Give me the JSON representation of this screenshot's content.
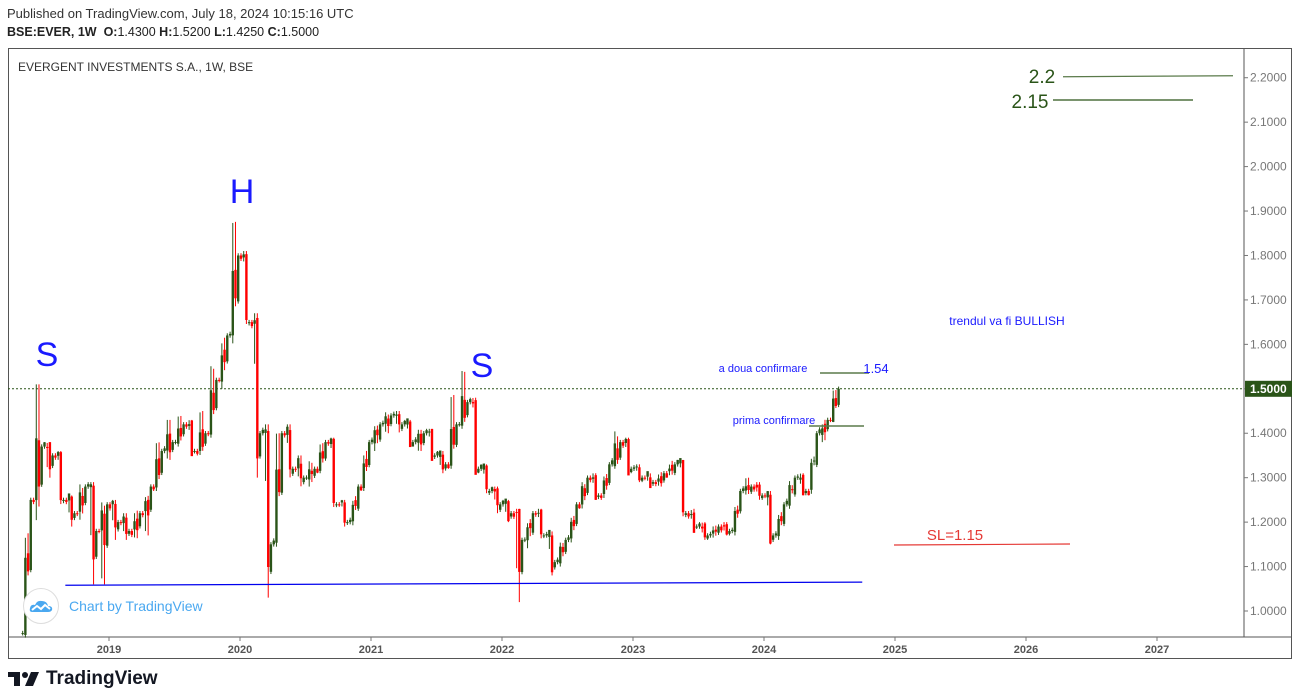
{
  "header": {
    "published": "Published on TradingView.com, July 18, 2024 10:15:16 UTC",
    "symbol": "BSE:EVER, 1W",
    "o_label": "O:",
    "o": "1.4300",
    "h_label": "H:",
    "h": "1.5200",
    "l_label": "L:",
    "l": "1.4250",
    "c_label": "C:",
    "c": "1.5000"
  },
  "chart_title": "EVERGENT INVESTMENTS S.A., 1W, BSE",
  "watermark": "Chart by TradingView",
  "footer_brand": "TradingView",
  "colors": {
    "up": "#2a5418",
    "down": "#ff0000",
    "annotation": "#1a1aff",
    "target": "#2a5418",
    "stop": "#e53935",
    "last_price_bg": "#2a5418"
  },
  "chart_data": {
    "type": "candlestick",
    "interval": "1W",
    "ylim": [
      0.94,
      2.26
    ],
    "xlim": [
      "2018-04",
      "2027-08"
    ],
    "y_ticks": [
      "1.0000",
      "1.1000",
      "1.2000",
      "1.3000",
      "1.4000",
      "1.5000",
      "1.6000",
      "1.7000",
      "1.8000",
      "1.9000",
      "2.0000",
      "2.1000",
      "2.2000"
    ],
    "x_ticks": [
      "2019",
      "2020",
      "2021",
      "2022",
      "2023",
      "2024",
      "2025",
      "2026",
      "2027"
    ],
    "last_price": 1.5,
    "last_price_label": "1.5000",
    "ohlc_monthly_approx": [
      [
        "2018-05",
        0.95,
        1.3,
        0.94,
        1.25
      ],
      [
        "2018-06",
        1.25,
        1.51,
        1.2,
        1.37
      ],
      [
        "2018-07",
        1.37,
        1.38,
        1.3,
        1.35
      ],
      [
        "2018-08",
        1.35,
        1.36,
        1.24,
        1.25
      ],
      [
        "2018-09",
        1.25,
        1.26,
        1.19,
        1.22
      ],
      [
        "2018-10",
        1.22,
        1.3,
        1.2,
        1.28
      ],
      [
        "2018-11",
        1.28,
        1.29,
        1.06,
        1.18
      ],
      [
        "2018-12",
        1.18,
        1.26,
        1.06,
        1.24
      ],
      [
        "2019-01",
        1.24,
        1.25,
        1.16,
        1.2
      ],
      [
        "2019-02",
        1.2,
        1.22,
        1.16,
        1.18
      ],
      [
        "2019-03",
        1.18,
        1.24,
        1.16,
        1.22
      ],
      [
        "2019-04",
        1.22,
        1.29,
        1.17,
        1.28
      ],
      [
        "2019-05",
        1.28,
        1.4,
        1.27,
        1.36
      ],
      [
        "2019-06",
        1.36,
        1.43,
        1.34,
        1.38
      ],
      [
        "2019-07",
        1.38,
        1.45,
        1.37,
        1.42
      ],
      [
        "2019-08",
        1.42,
        1.43,
        1.35,
        1.36
      ],
      [
        "2019-09",
        1.36,
        1.45,
        1.35,
        1.4
      ],
      [
        "2019-10",
        1.4,
        1.58,
        1.39,
        1.52
      ],
      [
        "2019-11",
        1.52,
        1.65,
        1.5,
        1.62
      ],
      [
        "2019-12",
        1.62,
        1.92,
        1.6,
        1.8
      ],
      [
        "2020-01",
        1.8,
        1.81,
        1.64,
        1.65
      ],
      [
        "2020-02",
        1.65,
        1.67,
        1.3,
        1.4
      ],
      [
        "2020-03",
        1.4,
        1.42,
        1.03,
        1.15
      ],
      [
        "2020-04",
        1.15,
        1.49,
        1.14,
        1.4
      ],
      [
        "2020-05",
        1.4,
        1.42,
        1.3,
        1.32
      ],
      [
        "2020-06",
        1.32,
        1.35,
        1.28,
        1.3
      ],
      [
        "2020-07",
        1.3,
        1.34,
        1.28,
        1.32
      ],
      [
        "2020-08",
        1.32,
        1.4,
        1.31,
        1.38
      ],
      [
        "2020-09",
        1.38,
        1.39,
        1.23,
        1.24
      ],
      [
        "2020-10",
        1.24,
        1.25,
        1.19,
        1.2
      ],
      [
        "2020-11",
        1.2,
        1.29,
        1.19,
        1.28
      ],
      [
        "2020-12",
        1.28,
        1.4,
        1.27,
        1.38
      ],
      [
        "2021-01",
        1.38,
        1.43,
        1.36,
        1.42
      ],
      [
        "2021-02",
        1.42,
        1.45,
        1.4,
        1.44
      ],
      [
        "2021-03",
        1.44,
        1.45,
        1.4,
        1.42
      ],
      [
        "2021-04",
        1.42,
        1.43,
        1.37,
        1.38
      ],
      [
        "2021-05",
        1.38,
        1.41,
        1.36,
        1.4
      ],
      [
        "2021-06",
        1.4,
        1.41,
        1.34,
        1.35
      ],
      [
        "2021-07",
        1.35,
        1.36,
        1.31,
        1.33
      ],
      [
        "2021-08",
        1.33,
        1.5,
        1.32,
        1.42
      ],
      [
        "2021-09",
        1.42,
        1.54,
        1.41,
        1.47
      ],
      [
        "2021-10",
        1.47,
        1.48,
        1.31,
        1.32
      ],
      [
        "2021-11",
        1.32,
        1.33,
        1.26,
        1.27
      ],
      [
        "2021-12",
        1.27,
        1.28,
        1.22,
        1.24
      ],
      [
        "2022-01",
        1.24,
        1.25,
        1.2,
        1.22
      ],
      [
        "2022-02",
        1.22,
        1.23,
        1.02,
        1.16
      ],
      [
        "2022-03",
        1.16,
        1.23,
        1.14,
        1.22
      ],
      [
        "2022-04",
        1.22,
        1.23,
        1.16,
        1.17
      ],
      [
        "2022-05",
        1.17,
        1.18,
        1.08,
        1.11
      ],
      [
        "2022-06",
        1.11,
        1.17,
        1.1,
        1.16
      ],
      [
        "2022-07",
        1.16,
        1.25,
        1.15,
        1.24
      ],
      [
        "2022-08",
        1.24,
        1.31,
        1.23,
        1.3
      ],
      [
        "2022-09",
        1.3,
        1.31,
        1.25,
        1.26
      ],
      [
        "2022-10",
        1.26,
        1.34,
        1.25,
        1.33
      ],
      [
        "2022-11",
        1.33,
        1.41,
        1.32,
        1.38
      ],
      [
        "2022-12",
        1.38,
        1.39,
        1.31,
        1.32
      ],
      [
        "2023-01",
        1.32,
        1.33,
        1.29,
        1.3
      ],
      [
        "2023-02",
        1.3,
        1.31,
        1.28,
        1.29
      ],
      [
        "2023-03",
        1.29,
        1.32,
        1.28,
        1.31
      ],
      [
        "2023-04",
        1.31,
        1.34,
        1.3,
        1.33
      ],
      [
        "2023-05",
        1.33,
        1.34,
        1.21,
        1.22
      ],
      [
        "2023-06",
        1.22,
        1.23,
        1.18,
        1.19
      ],
      [
        "2023-07",
        1.19,
        1.2,
        1.16,
        1.17
      ],
      [
        "2023-08",
        1.17,
        1.2,
        1.16,
        1.19
      ],
      [
        "2023-09",
        1.19,
        1.2,
        1.17,
        1.18
      ],
      [
        "2023-10",
        1.18,
        1.28,
        1.17,
        1.27
      ],
      [
        "2023-11",
        1.27,
        1.3,
        1.26,
        1.28
      ],
      [
        "2023-12",
        1.28,
        1.29,
        1.25,
        1.26
      ],
      [
        "2024-01",
        1.26,
        1.27,
        1.15,
        1.17
      ],
      [
        "2024-02",
        1.17,
        1.25,
        1.16,
        1.24
      ],
      [
        "2024-03",
        1.24,
        1.31,
        1.23,
        1.3
      ],
      [
        "2024-04",
        1.3,
        1.31,
        1.26,
        1.27
      ],
      [
        "2024-05",
        1.27,
        1.41,
        1.26,
        1.4
      ],
      [
        "2024-06",
        1.4,
        1.44,
        1.38,
        1.43
      ],
      [
        "2024-07",
        1.43,
        1.52,
        1.425,
        1.5
      ]
    ],
    "annotations": {
      "s_left": {
        "text": "S",
        "date": "2018-06",
        "price": 1.61
      },
      "h": {
        "text": "H",
        "date": "2020-01",
        "price": 1.97
      },
      "s_right": {
        "text": "S",
        "date": "2021-09",
        "price": 1.58
      },
      "trend_note": {
        "text": "trendul va fi BULLISH",
        "date": "2025-08",
        "price": 1.66
      },
      "second_confirm": {
        "text": "a doua confirmare",
        "value_text": "1.54",
        "price": 1.53
      },
      "first_confirm": {
        "text": "prima confirmare",
        "price": 1.415
      },
      "target1": {
        "text": "2.2",
        "price": 2.2
      },
      "target2": {
        "text": "2.15",
        "price": 2.15
      },
      "stop_loss": {
        "text": "SL=1.15",
        "price": 1.15
      },
      "support_line": {
        "from": [
          "2018-09",
          1.058
        ],
        "to": [
          "2024-10",
          1.065
        ]
      }
    }
  }
}
